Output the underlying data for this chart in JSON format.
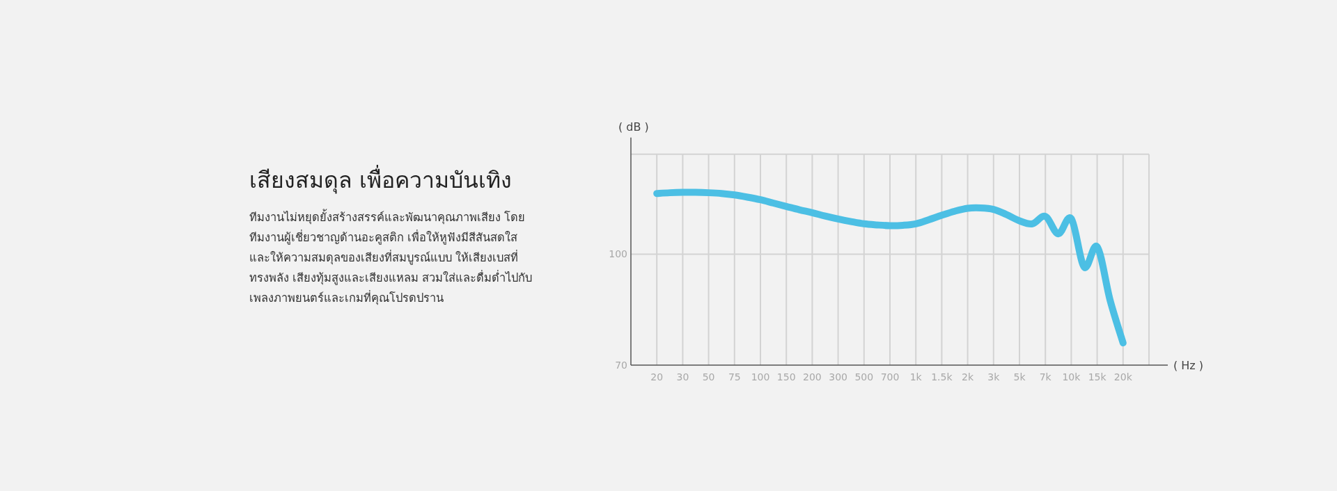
{
  "chart_data": {
    "type": "line",
    "title": "เสียงสมดุล เพื่อความบันเทิง",
    "subtitle": "ทีมงานไม่หยุดยั้งสร้างสรรค์และพัฒนาคุณภาพเสียง โดยทีมงานผู้เชี่ยวชาญด้านอะคูสติก เพื่อให้หูฟังมีสีสันสดใส และให้ความสมดุลของเสียงที่สมบูรณ์แบบ ให้เสียงเบสที่ทรงพลัง เสียงทุ้มสูงและเสียงแหลม สวมใส่และดื่มด่ำไปกับเพลงภาพยนตร์และเกมที่คุณโปรดปราน",
    "xlabel": "( Hz )",
    "ylabel": "( dB )",
    "categories": [
      "20",
      null,
      "30",
      null,
      "50",
      null,
      "75",
      null,
      "100",
      null,
      "150",
      null,
      "200",
      null,
      "300",
      null,
      "500",
      null,
      "700",
      null,
      "1k",
      null,
      "1.5k",
      null,
      "2k",
      null,
      "3k",
      null,
      "5k",
      null,
      "7k",
      null,
      "10k",
      null,
      "15k",
      null,
      "20k"
    ],
    "ylim": [
      70,
      127
    ],
    "yticks": [
      70,
      100
    ],
    "grid": true,
    "marker": "none",
    "line_style": "solid",
    "series": [
      {
        "color": "#4cbfe4",
        "values": [
          116.4,
          116.6,
          116.7,
          116.7,
          116.6,
          116.4,
          116.0,
          115.4,
          114.7,
          113.8,
          112.9,
          112.0,
          111.2,
          110.3,
          109.5,
          108.8,
          108.2,
          107.9,
          107.7,
          107.8,
          108.2,
          109.3,
          110.5,
          111.6,
          112.4,
          112.5,
          112.1,
          110.7,
          109.0,
          108.2,
          110.2,
          105.5,
          109.6,
          96.5,
          102.0,
          87.5,
          76.0
        ]
      }
    ]
  }
}
